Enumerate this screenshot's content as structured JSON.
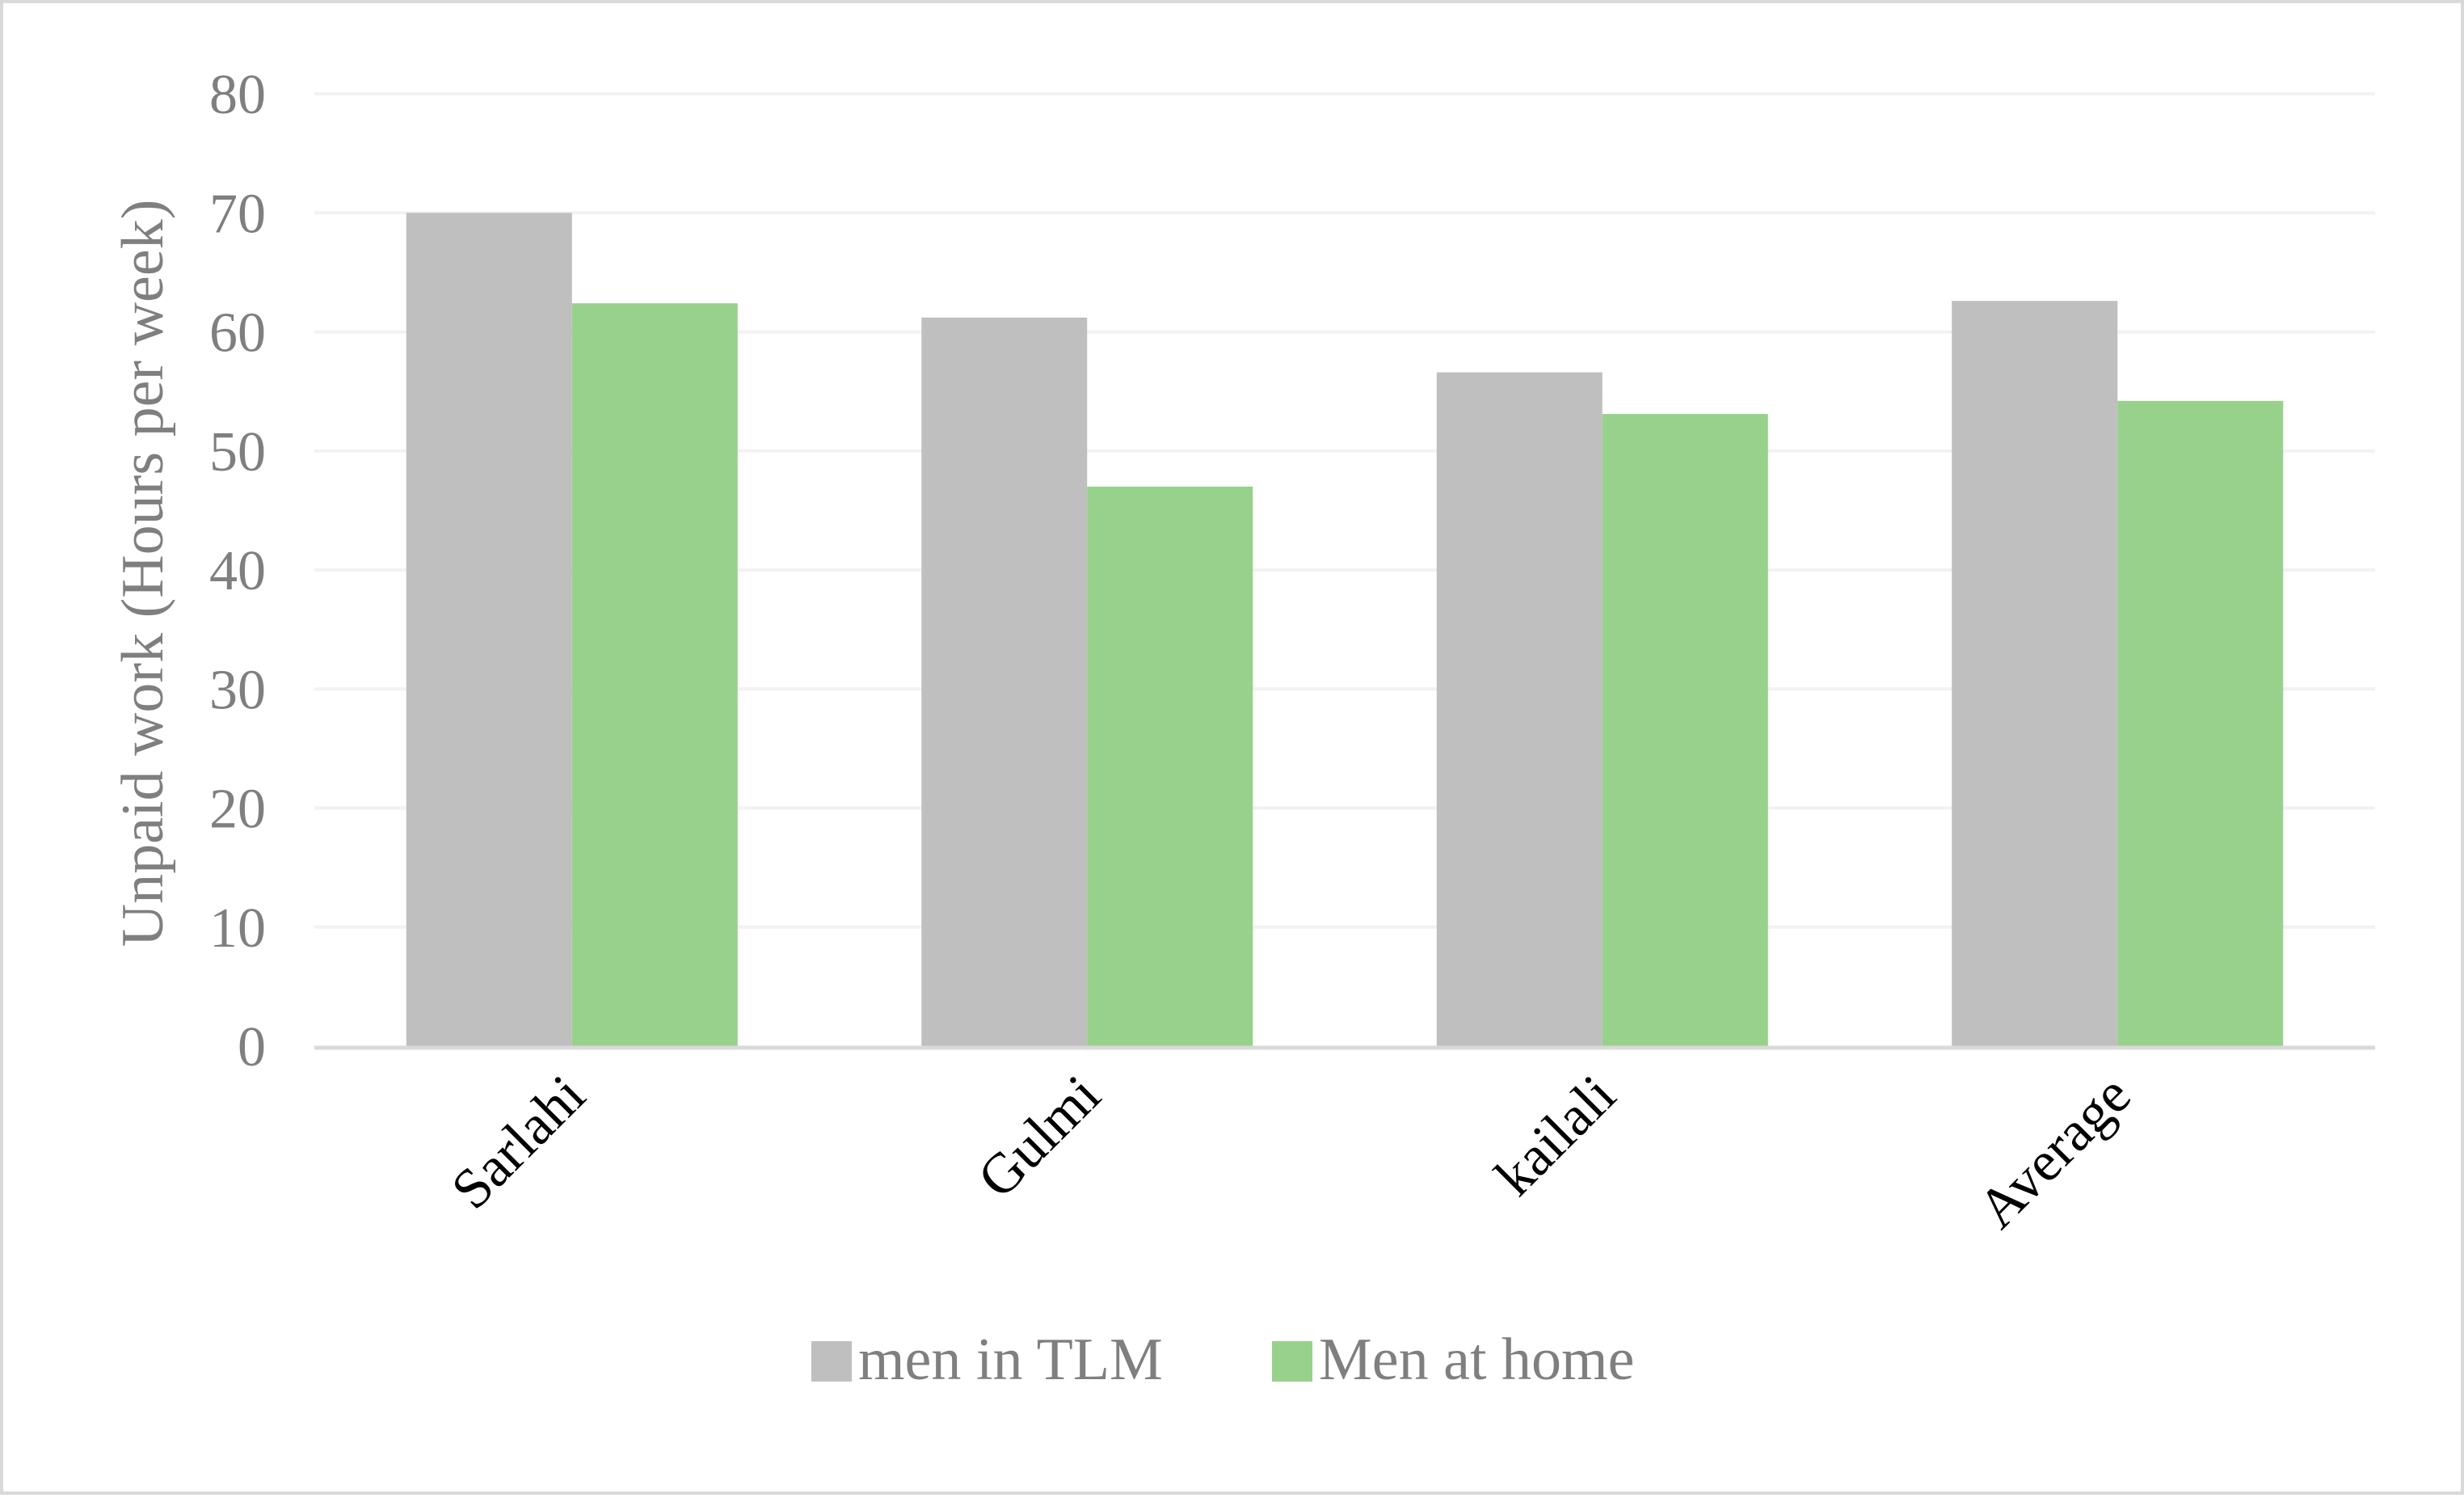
{
  "chart_data": {
    "type": "bar",
    "title": "",
    "xlabel": "",
    "ylabel": "Unpaid work (Hours per week)",
    "categories": [
      "Sarlahi",
      "Gulmi",
      "kailali",
      "Average"
    ],
    "series": [
      {
        "name": "men in TLM",
        "values": [
          70,
          61.2,
          56.6,
          62.6
        ],
        "color": "#bfbfbf"
      },
      {
        "name": "Men at home",
        "values": [
          62.4,
          47.0,
          53.1,
          54.2
        ],
        "color": "#97d18b"
      }
    ],
    "ylim": [
      0,
      80
    ],
    "yticks": [
      "0",
      "10",
      "20",
      "30",
      "40",
      "50",
      "60",
      "70",
      "80"
    ],
    "grid": true,
    "legend_position": "bottom"
  }
}
